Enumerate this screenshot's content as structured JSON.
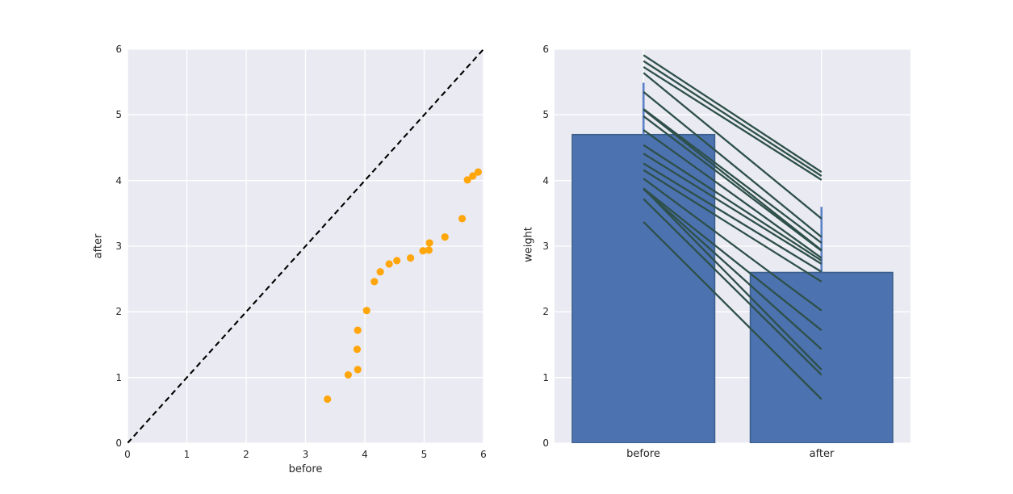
{
  "figure": {
    "background": "#ffffff",
    "axes_background": "#eaeaf2",
    "grid_color": "#ffffff",
    "tick_color": "#262626"
  },
  "chart_data": [
    {
      "type": "scatter",
      "title": "",
      "xlabel": "before",
      "ylabel": "after",
      "xlim": [
        0,
        6
      ],
      "ylim": [
        0,
        6
      ],
      "xticks": [
        "0",
        "1",
        "2",
        "3",
        "4",
        "5",
        "6"
      ],
      "yticks": [
        "0",
        "1",
        "2",
        "3",
        "4",
        "5",
        "6"
      ],
      "grid": true,
      "legend": false,
      "point_color": "#ffa60d",
      "points": [
        [
          3.37,
          0.67
        ],
        [
          3.72,
          1.04
        ],
        [
          3.87,
          1.43
        ],
        [
          3.88,
          1.12
        ],
        [
          3.88,
          1.72
        ],
        [
          4.03,
          2.02
        ],
        [
          4.16,
          2.46
        ],
        [
          4.26,
          2.61
        ],
        [
          4.41,
          2.73
        ],
        [
          4.54,
          2.78
        ],
        [
          4.77,
          2.82
        ],
        [
          4.98,
          2.93
        ],
        [
          5.08,
          2.94
        ],
        [
          5.09,
          3.05
        ],
        [
          5.35,
          3.14
        ],
        [
          5.64,
          3.42
        ],
        [
          5.73,
          4.01
        ],
        [
          5.82,
          4.07
        ],
        [
          5.91,
          4.13
        ]
      ],
      "reference_line": {
        "style": "dashed",
        "from": [
          0,
          0
        ],
        "to": [
          6,
          6
        ],
        "color": "#000000"
      }
    },
    {
      "type": "bar",
      "title": "",
      "xlabel": "",
      "ylabel": "weight",
      "ylim": [
        0,
        6
      ],
      "yticks": [
        "0",
        "1",
        "2",
        "3",
        "4",
        "5",
        "6"
      ],
      "grid": true,
      "legend": false,
      "categories": [
        "before",
        "after"
      ],
      "values": [
        4.7,
        2.6
      ],
      "error_caps": [
        5.49,
        3.6
      ],
      "bar_color": "#4c72b0",
      "bar_edge_color": "#3a5e8c",
      "error_color": "#5b81c6",
      "paired_lines": {
        "color": "#2e5049",
        "pairs": [
          [
            3.37,
            0.67
          ],
          [
            3.72,
            1.04
          ],
          [
            3.87,
            1.43
          ],
          [
            3.88,
            1.12
          ],
          [
            3.88,
            1.72
          ],
          [
            4.03,
            2.02
          ],
          [
            4.16,
            2.46
          ],
          [
            4.26,
            2.61
          ],
          [
            4.41,
            2.73
          ],
          [
            4.54,
            2.78
          ],
          [
            4.77,
            2.82
          ],
          [
            4.98,
            2.93
          ],
          [
            5.08,
            2.94
          ],
          [
            5.09,
            3.05
          ],
          [
            5.35,
            3.14
          ],
          [
            5.64,
            3.42
          ],
          [
            5.73,
            4.01
          ],
          [
            5.82,
            4.07
          ],
          [
            5.91,
            4.13
          ]
        ]
      }
    }
  ]
}
